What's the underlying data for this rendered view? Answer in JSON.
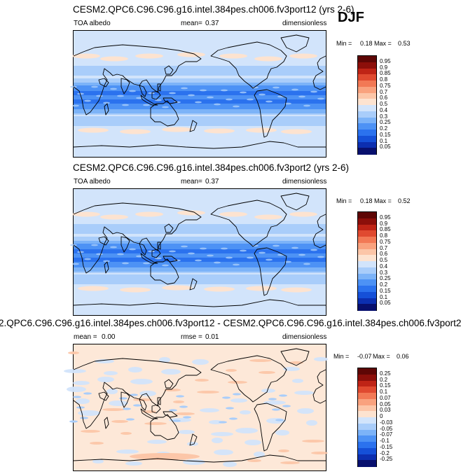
{
  "season": "DJF",
  "panels": [
    {
      "id": "p1",
      "title": "CESM2.QPC6.C96.C96.g16.intel.384pes.ch006.fv3port12 (yrs 2-6)",
      "left_label": "TOA albedo",
      "mid_label": "mean=",
      "mid_value": "0.37",
      "right_label": "dimensionless",
      "min_label": "Min =",
      "min_value": "0.18",
      "max_label": "Max =",
      "max_value": "0.53",
      "levels": [
        "0.95",
        "0.9",
        "0.85",
        "0.8",
        "0.75",
        "0.7",
        "0.6",
        "0.5",
        "0.4",
        "0.3",
        "0.25",
        "0.2",
        "0.15",
        "0.1",
        "0.05"
      ]
    },
    {
      "id": "p2",
      "title": "CESM2.QPC6.C96.C96.g16.intel.384pes.ch006.fv3port2 (yrs 2-6)",
      "left_label": "TOA albedo",
      "mid_label": "mean=",
      "mid_value": "0.37",
      "right_label": "dimensionless",
      "min_label": "Min =",
      "min_value": "0.18",
      "max_label": "Max =",
      "max_value": "0.52",
      "levels": [
        "0.95",
        "0.9",
        "0.85",
        "0.8",
        "0.75",
        "0.7",
        "0.6",
        "0.5",
        "0.4",
        "0.3",
        "0.25",
        "0.2",
        "0.15",
        "0.1",
        "0.05"
      ]
    },
    {
      "id": "p3",
      "title": "2.QPC6.C96.C96.g16.intel.384pes.ch006.fv3port12 - CESM2.QPC6.C96.C96.g16.intel.384pes.ch006.fv3port2",
      "left_label": "mean =",
      "left_value": "0.00",
      "mid_label": "rmse =",
      "mid_value": "0.01",
      "right_label": "dimensionless",
      "min_label": "Min =",
      "min_value": "-0.07",
      "max_label": "Max =",
      "max_value": "0.06",
      "levels": [
        "0.25",
        "0.2",
        "0.15",
        "0.1",
        "0.07",
        "0.05",
        "0.03",
        "0",
        "-0.03",
        "-0.05",
        "-0.07",
        "-0.1",
        "-0.15",
        "-0.2",
        "-0.25"
      ]
    }
  ],
  "colors": {
    "scale": [
      "#08106e",
      "#0c2fb0",
      "#1550d8",
      "#2b72ee",
      "#4d92f5",
      "#7cb3f8",
      "#a9cdfa",
      "#d2e4fb",
      "#fde3d0",
      "#fcc6a8",
      "#f9a27e",
      "#f27955",
      "#e04a30",
      "#bf2416",
      "#8c0f0a",
      "#5e0605"
    ]
  },
  "chart_data": [
    {
      "type": "heatmap",
      "title": "CESM2.QPC6.C96.C96.g16.intel.384pes.ch006.fv3port12 (yrs 2-6)",
      "variable": "TOA albedo",
      "units": "dimensionless",
      "mean": 0.37,
      "min": 0.18,
      "max": 0.53,
      "levels": [
        0.05,
        0.1,
        0.15,
        0.2,
        0.25,
        0.3,
        0.4,
        0.5,
        0.6,
        0.7,
        0.75,
        0.8,
        0.85,
        0.9,
        0.95
      ]
    },
    {
      "type": "heatmap",
      "title": "CESM2.QPC6.C96.C96.g16.intel.384pes.ch006.fv3port2 (yrs 2-6)",
      "variable": "TOA albedo",
      "units": "dimensionless",
      "mean": 0.37,
      "min": 0.18,
      "max": 0.52,
      "levels": [
        0.05,
        0.1,
        0.15,
        0.2,
        0.25,
        0.3,
        0.4,
        0.5,
        0.6,
        0.7,
        0.75,
        0.8,
        0.85,
        0.9,
        0.95
      ]
    },
    {
      "type": "heatmap",
      "title": "2.QPC6.C96.C96.g16.intel.384pes.ch006.fv3port12 - CESM2.QPC6.C96.C96.g16.intel.384pes.ch006.fv3port2",
      "units": "dimensionless",
      "mean": 0.0,
      "rmse": 0.01,
      "min": -0.07,
      "max": 0.06,
      "levels": [
        -0.25,
        -0.2,
        -0.15,
        -0.1,
        -0.07,
        -0.05,
        -0.03,
        0,
        0.03,
        0.05,
        0.07,
        0.1,
        0.15,
        0.2,
        0.25
      ]
    }
  ]
}
